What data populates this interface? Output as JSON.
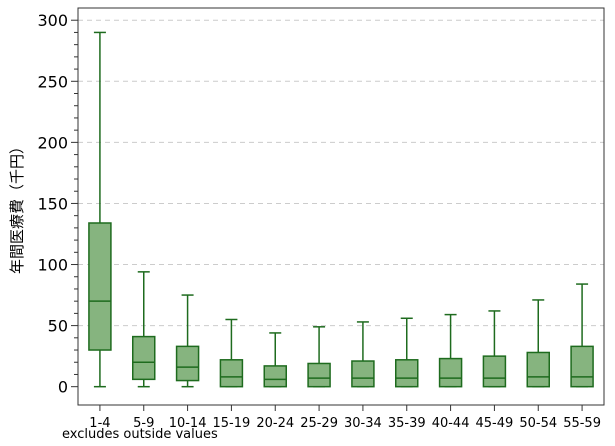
{
  "chart_data": {
    "type": "boxplot",
    "ylabel": "年間医療費（千円）",
    "ylim": [
      -15,
      310
    ],
    "yticks": [
      0,
      50,
      100,
      150,
      200,
      250,
      300
    ],
    "grid": "horizontal dashed",
    "colors": {
      "box_fill": "#86b47f",
      "box_stroke": "#1e6b1e",
      "grid": "#cccccc"
    },
    "note": "excludes outside values",
    "categories": [
      "1-4",
      "5-9",
      "10-14",
      "15-19",
      "20-24",
      "25-29",
      "30-34",
      "35-39",
      "40-44",
      "45-49",
      "50-54",
      "55-59"
    ],
    "boxes": [
      {
        "min": 0,
        "q1": 30,
        "median": 70,
        "q3": 134,
        "max": 290
      },
      {
        "min": 0,
        "q1": 6,
        "median": 20,
        "q3": 41,
        "max": 94
      },
      {
        "min": 0,
        "q1": 5,
        "median": 16,
        "q3": 33,
        "max": 75
      },
      {
        "min": 0,
        "q1": 0,
        "median": 8,
        "q3": 22,
        "max": 55
      },
      {
        "min": 0,
        "q1": 0,
        "median": 6,
        "q3": 17,
        "max": 44
      },
      {
        "min": 0,
        "q1": 0,
        "median": 7,
        "q3": 19,
        "max": 49
      },
      {
        "min": 0,
        "q1": 0,
        "median": 7,
        "q3": 21,
        "max": 53
      },
      {
        "min": 0,
        "q1": 0,
        "median": 7,
        "q3": 22,
        "max": 56
      },
      {
        "min": 0,
        "q1": 0,
        "median": 7,
        "q3": 23,
        "max": 59
      },
      {
        "min": 0,
        "q1": 0,
        "median": 7,
        "q3": 25,
        "max": 62
      },
      {
        "min": 0,
        "q1": 0,
        "median": 8,
        "q3": 28,
        "max": 71
      },
      {
        "min": 0,
        "q1": 0,
        "median": 8,
        "q3": 33,
        "max": 84
      }
    ]
  }
}
